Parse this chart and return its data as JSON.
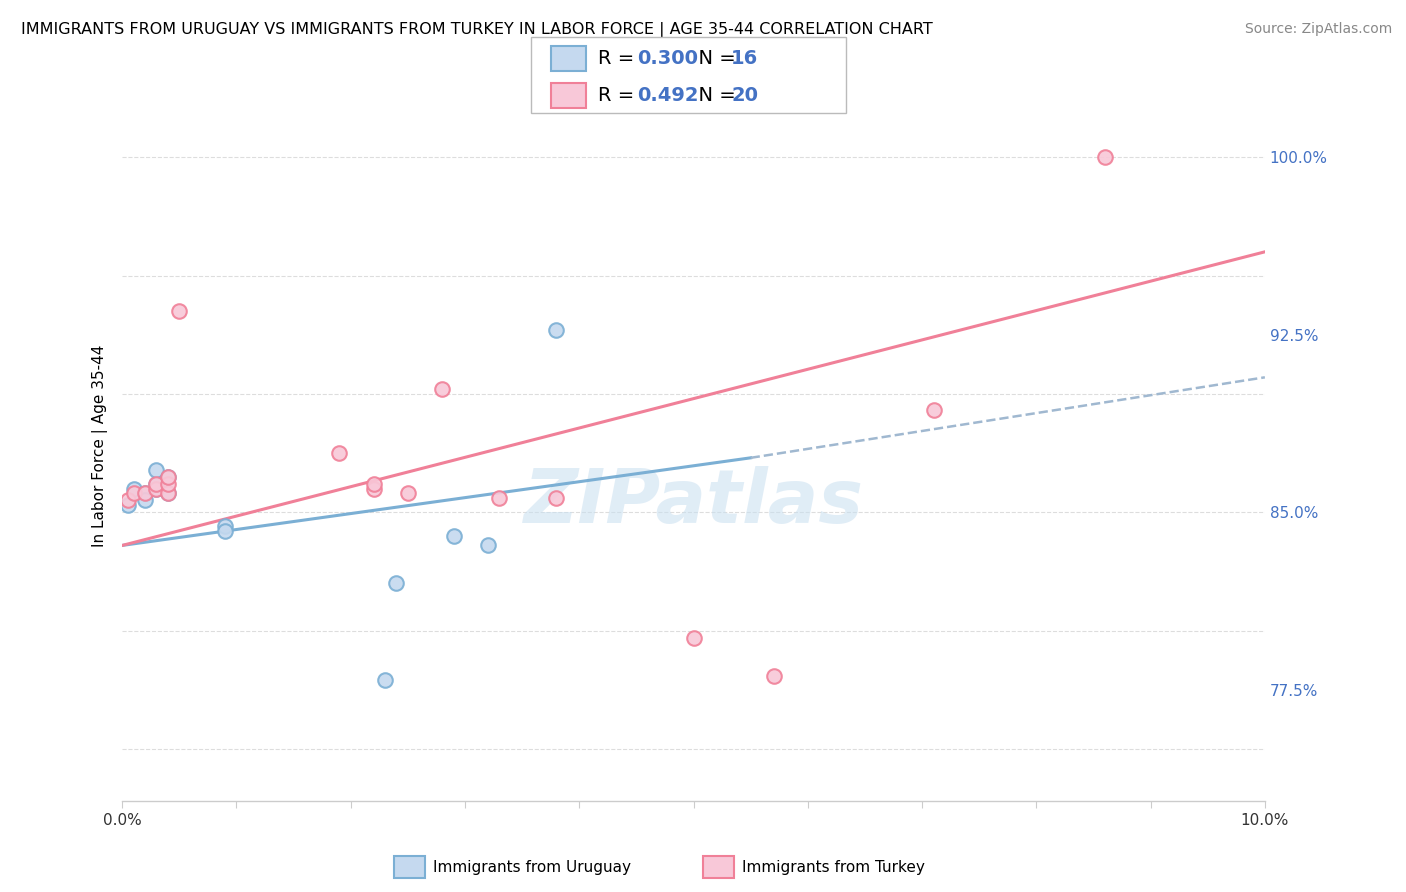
{
  "title": "IMMIGRANTS FROM URUGUAY VS IMMIGRANTS FROM TURKEY IN LABOR FORCE | AGE 35-44 CORRELATION CHART",
  "source": "Source: ZipAtlas.com",
  "ylabel": "In Labor Force | Age 35-44",
  "xlim": [
    0.0,
    0.1
  ],
  "ylim": [
    0.728,
    1.028
  ],
  "ytick_labels": [
    "77.5%",
    "85.0%",
    "92.5%",
    "100.0%"
  ],
  "ytick_values": [
    0.775,
    0.85,
    0.925,
    1.0
  ],
  "uruguay_x": [
    0.0005,
    0.001,
    0.002,
    0.002,
    0.003,
    0.003,
    0.003,
    0.004,
    0.004,
    0.009,
    0.009,
    0.023,
    0.024,
    0.029,
    0.032,
    0.038
  ],
  "uruguay_y": [
    0.853,
    0.86,
    0.858,
    0.855,
    0.86,
    0.862,
    0.868,
    0.865,
    0.858,
    0.844,
    0.842,
    0.779,
    0.82,
    0.84,
    0.836,
    0.927
  ],
  "turkey_x": [
    0.0005,
    0.001,
    0.002,
    0.003,
    0.003,
    0.004,
    0.004,
    0.004,
    0.005,
    0.019,
    0.022,
    0.022,
    0.025,
    0.028,
    0.033,
    0.038,
    0.05,
    0.057,
    0.071,
    0.086
  ],
  "turkey_y": [
    0.855,
    0.858,
    0.858,
    0.86,
    0.862,
    0.858,
    0.862,
    0.865,
    0.935,
    0.875,
    0.86,
    0.862,
    0.858,
    0.902,
    0.856,
    0.856,
    0.797,
    0.781,
    0.893,
    1.0
  ],
  "uruguay_line_x": [
    0.0,
    0.055
  ],
  "uruguay_line_y": [
    0.836,
    0.873
  ],
  "turkey_line_x": [
    0.0,
    0.1
  ],
  "turkey_line_y": [
    0.836,
    0.96
  ],
  "dashed_line_x": [
    0.055,
    0.1
  ],
  "dashed_line_y": [
    0.873,
    0.907
  ],
  "uruguay_color": "#7bafd4",
  "turkey_color": "#f08098",
  "uruguay_fill": "#c5d9ef",
  "turkey_fill": "#f8c8d8",
  "grid_color": "#dddddd",
  "title_fontsize": 11.5,
  "axis_label_fontsize": 11,
  "tick_fontsize": 11,
  "legend_fontsize": 14,
  "source_fontsize": 10,
  "marker_size": 110
}
